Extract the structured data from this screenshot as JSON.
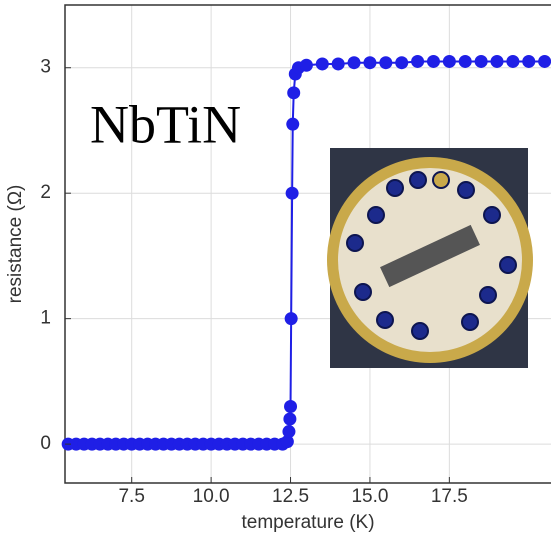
{
  "chart_data": {
    "type": "line",
    "xlabel": "temperature (K)",
    "ylabel": "resistance (Ω)",
    "annotations": [
      "NbTiN"
    ],
    "color": "#1f1fe6",
    "x": [
      5.5,
      5.75,
      6.0,
      6.25,
      6.5,
      6.75,
      7.0,
      7.25,
      7.5,
      7.75,
      8.0,
      8.25,
      8.5,
      8.75,
      9.0,
      9.25,
      9.5,
      9.75,
      10.0,
      10.25,
      10.5,
      10.75,
      11.0,
      11.25,
      11.5,
      11.75,
      12.0,
      12.25,
      12.4,
      12.45,
      12.48,
      12.5,
      12.52,
      12.55,
      12.57,
      12.6,
      12.65,
      12.75,
      13.0,
      13.5,
      14.0,
      14.5,
      15.0,
      15.5,
      16.0,
      16.5,
      17.0,
      17.5,
      18.0,
      18.5,
      19.0,
      19.5,
      20.0,
      20.5
    ],
    "values": [
      0,
      0,
      0,
      0,
      0,
      0,
      0,
      0,
      0,
      0,
      0,
      0,
      0,
      0,
      0,
      0,
      0,
      0,
      0,
      0,
      0,
      0,
      0,
      0,
      0,
      0,
      0,
      0,
      0.02,
      0.1,
      0.2,
      0.3,
      1.0,
      2.0,
      2.55,
      2.8,
      2.95,
      3.0,
      3.02,
      3.03,
      3.03,
      3.04,
      3.04,
      3.04,
      3.04,
      3.05,
      3.05,
      3.05,
      3.05,
      3.05,
      3.05,
      3.05,
      3.05,
      3.05
    ],
    "xlim": [
      5.4,
      20.7
    ],
    "ylim": [
      -0.31,
      3.5
    ],
    "xticks": [
      7.5,
      {
        "value": 10,
        "label": "10.0"
      },
      12.5,
      {
        "value": 15,
        "label": "15.0"
      },
      17.5
    ],
    "yticks": [
      0,
      1,
      2,
      3
    ],
    "grid": true
  }
}
